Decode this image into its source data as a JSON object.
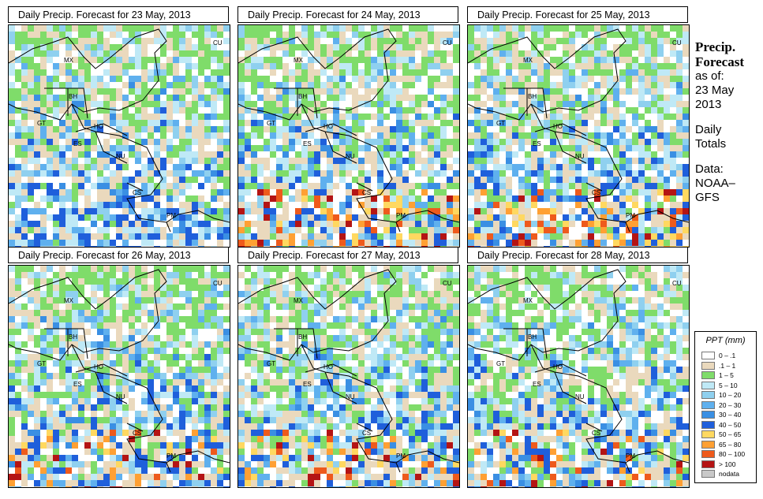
{
  "panels": [
    {
      "title": "Daily Precip. Forecast for  23 May, 2013",
      "seed": 11,
      "heavy": 0
    },
    {
      "title": "Daily Precip. Forecast for  24 May, 2013",
      "seed": 23,
      "heavy": 2
    },
    {
      "title": "Daily Precip. Forecast for  25 May, 2013",
      "seed": 37,
      "heavy": 2
    },
    {
      "title": "Daily Precip. Forecast for  26 May, 2013",
      "seed": 41,
      "heavy": 1
    },
    {
      "title": "Daily Precip. Forecast for  27 May, 2013",
      "seed": 53,
      "heavy": 1
    },
    {
      "title": "Daily Precip. Forecast for  28 May, 2013",
      "seed": 67,
      "heavy": 1
    }
  ],
  "country_labels": [
    "MX",
    "BH",
    "GT",
    "HO",
    "ES",
    "NU",
    "CS",
    "PM",
    "CU"
  ],
  "side": {
    "heading1": "Precip.",
    "heading2": "Forecast",
    "asof": "as of:",
    "date1": "23 May",
    "date2": "2013",
    "daily1": "Daily",
    "daily2": "Totals",
    "data1": "Data:",
    "data2": "NOAA–",
    "data3": "GFS"
  },
  "legend": {
    "title": "PPT (mm)",
    "items": [
      {
        "label": "0 – .1",
        "color": "#ffffff"
      },
      {
        "label": ".1 – 1",
        "color": "#ead9bd"
      },
      {
        "label": "1 – 5",
        "color": "#7fdc6a"
      },
      {
        "label": "5 – 10",
        "color": "#bfe9f6"
      },
      {
        "label": "10 – 20",
        "color": "#8fd0ef"
      },
      {
        "label": "20 – 30",
        "color": "#5fb0ee"
      },
      {
        "label": "30 – 40",
        "color": "#3a8fe3"
      },
      {
        "label": "40 – 50",
        "color": "#1f5fdb"
      },
      {
        "label": "50 – 65",
        "color": "#ffd860"
      },
      {
        "label": "65 – 80",
        "color": "#ffa033"
      },
      {
        "label": "80 – 100",
        "color": "#ee5a1c"
      },
      {
        "label": "> 100",
        "color": "#b41414"
      },
      {
        "label": "nodata",
        "color": "#c8c8c8"
      }
    ]
  }
}
